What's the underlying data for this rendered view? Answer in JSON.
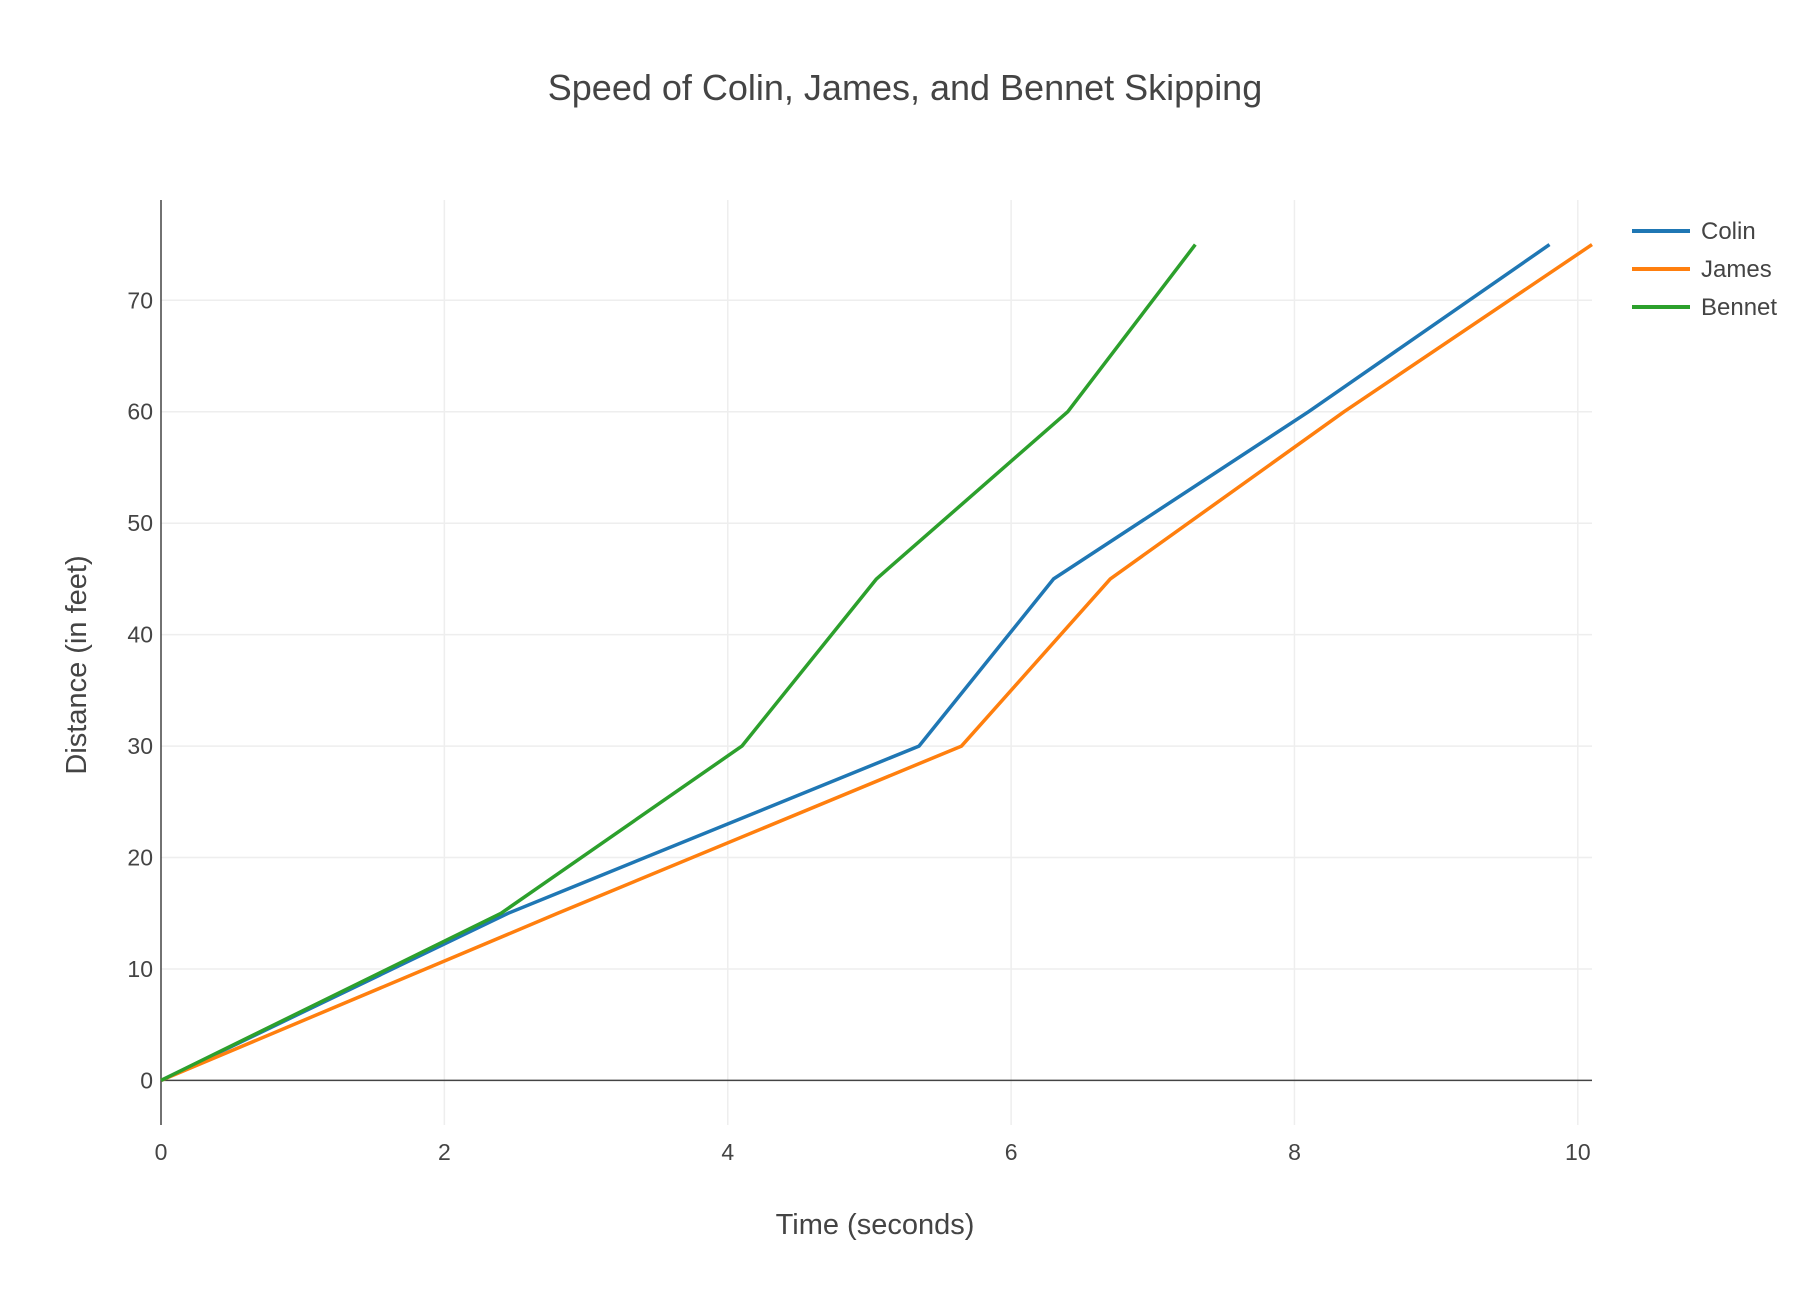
{
  "chart_data": {
    "type": "line",
    "title": "Speed of Colin, James, and Bennet Skipping",
    "xlabel": "Time (seconds)",
    "ylabel": "Distance (in feet)",
    "xlim": [
      0,
      10.1
    ],
    "ylim": [
      -4,
      79
    ],
    "x_ticks": [
      0,
      2,
      4,
      6,
      8,
      10
    ],
    "y_ticks": [
      0,
      10,
      20,
      30,
      40,
      50,
      60,
      70
    ],
    "grid": true,
    "legend_position": "top-right",
    "series": [
      {
        "name": "Colin",
        "color": "#1f77b4",
        "x": [
          0,
          2.45,
          5.35,
          6.3,
          8.1,
          9.8
        ],
        "y": [
          0,
          15,
          30,
          45,
          60,
          75
        ]
      },
      {
        "name": "James",
        "color": "#ff7f0e",
        "x": [
          0,
          2.8,
          5.65,
          6.7,
          8.35,
          10.1
        ],
        "y": [
          0,
          15,
          30,
          45,
          60,
          75
        ]
      },
      {
        "name": "Bennet",
        "color": "#2ca02c",
        "x": [
          0,
          2.4,
          4.1,
          5.05,
          6.4,
          7.3
        ],
        "y": [
          0,
          15,
          30,
          45,
          60,
          75
        ]
      }
    ]
  }
}
